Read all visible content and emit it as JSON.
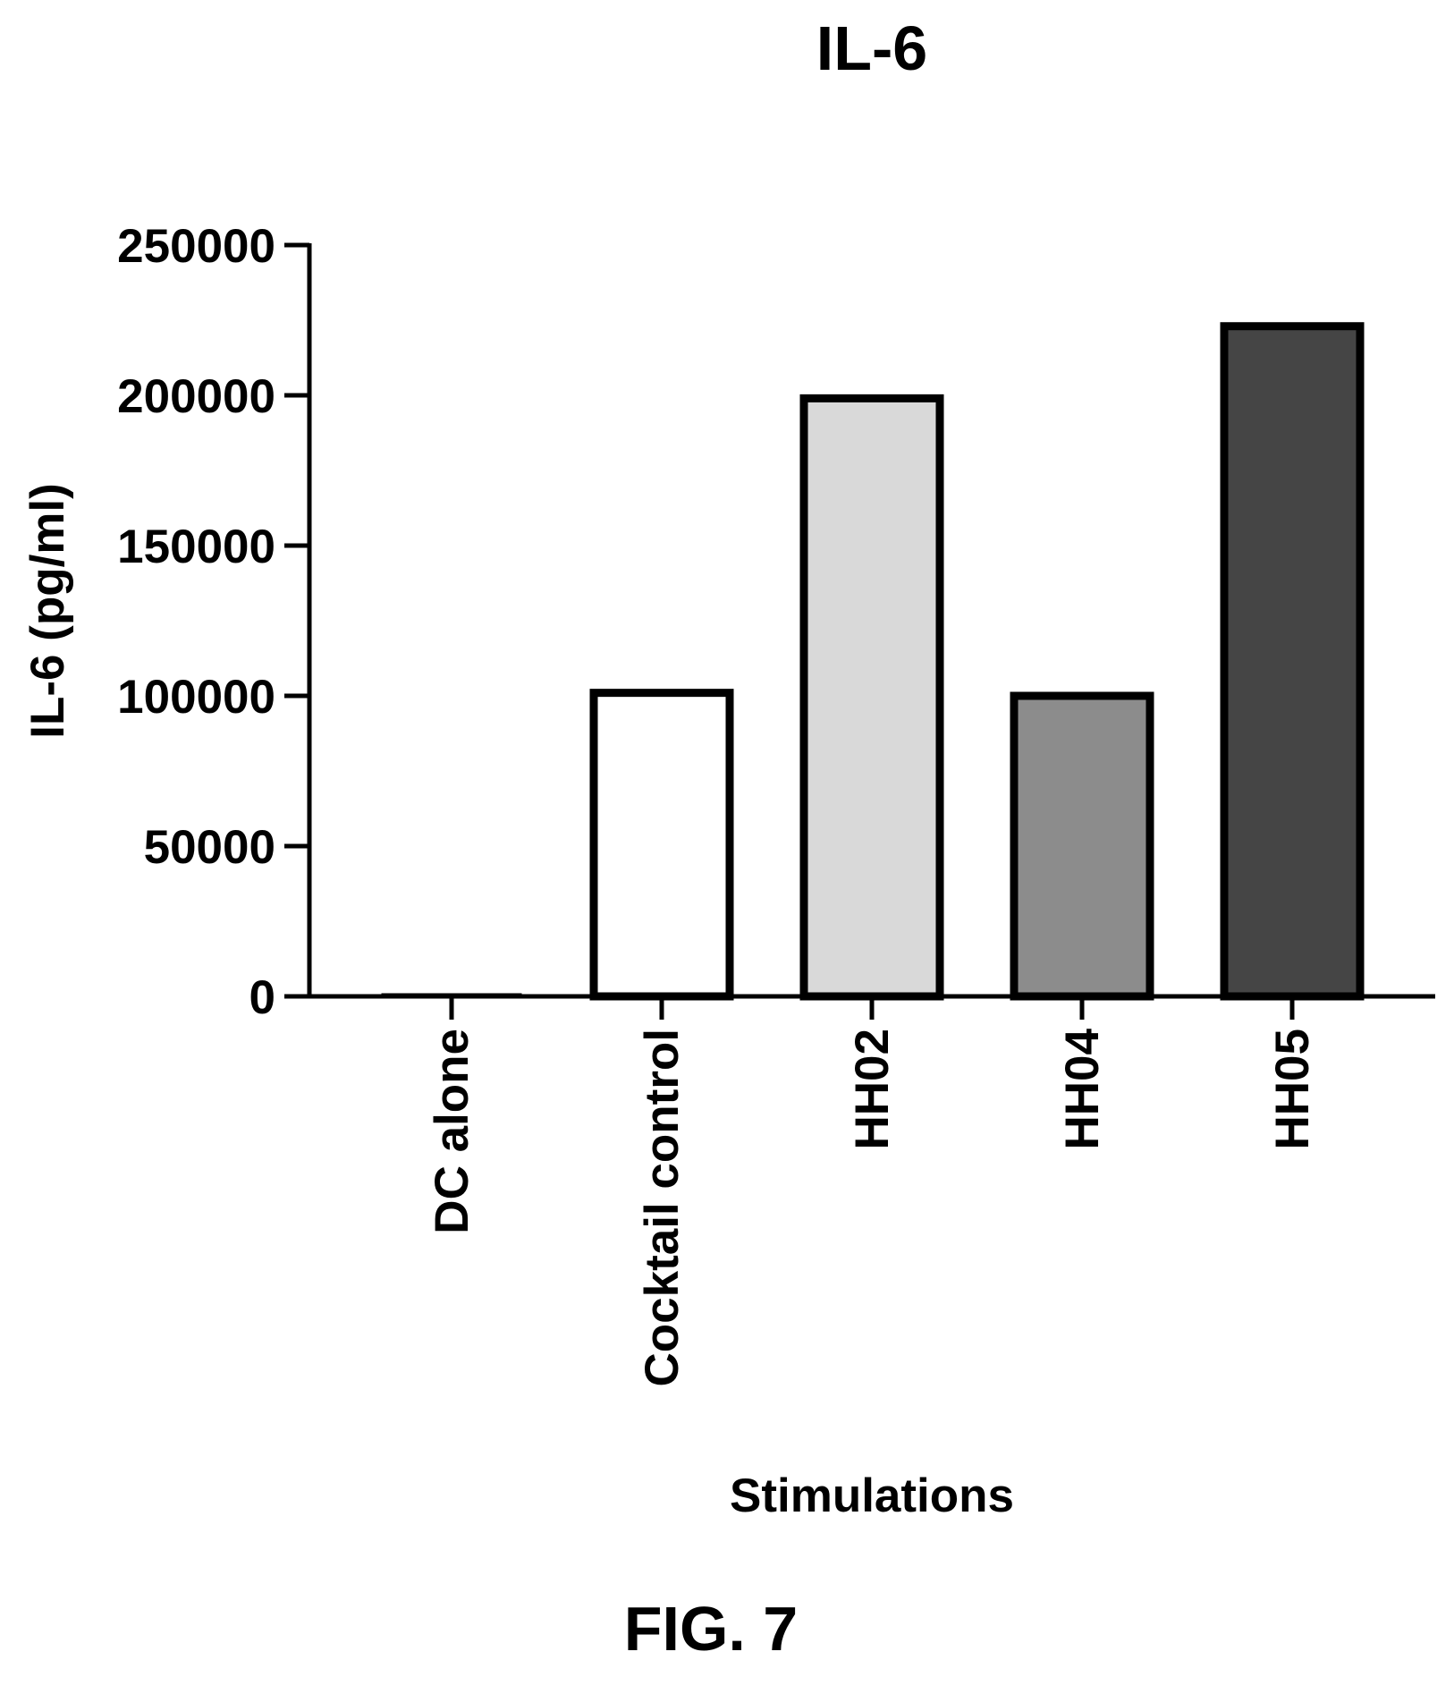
{
  "figure_caption": "FIG. 7",
  "chart_data": {
    "type": "bar",
    "title": "IL-6",
    "xlabel": "Stimulations",
    "ylabel": "IL-6 (pg/ml)",
    "categories": [
      "DC alone",
      "Cocktail control",
      "HH02",
      "HH04",
      "HH05"
    ],
    "values": [
      300,
      101000,
      199000,
      100000,
      223000
    ],
    "colors": [
      "#ffffff",
      "#ffffff",
      "#d9d9d9",
      "#8c8c8c",
      "#454545"
    ],
    "ylim": [
      0,
      250000
    ],
    "yticks": [
      0,
      50000,
      100000,
      150000,
      200000,
      250000
    ],
    "ytick_labels": [
      "0",
      "50000",
      "100000",
      "150000",
      "200000",
      "250000"
    ],
    "grid": false,
    "legend": "none"
  }
}
